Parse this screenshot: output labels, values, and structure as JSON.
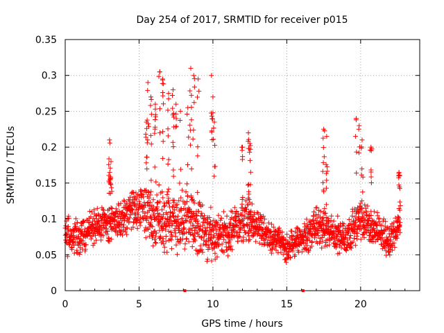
{
  "chart_data": {
    "type": "scatter",
    "title": "Day 254 of 2017, SRMTID for receiver p015",
    "xlabel": "GPS time / hours",
    "ylabel": "SRMTID / TECUs",
    "xlim": [
      0,
      24
    ],
    "ylim": [
      0,
      0.35
    ],
    "x_ticks": [
      0,
      5,
      10,
      15,
      20
    ],
    "x_tick_labels": [
      "0",
      "5",
      "10",
      "15",
      "20"
    ],
    "y_ticks": [
      0,
      0.05,
      0.1,
      0.15,
      0.2,
      0.25,
      0.3,
      0.35
    ],
    "y_tick_labels": [
      "0",
      "0.05",
      "0.1",
      "0.15",
      "0.2",
      "0.25",
      "0.3",
      "0.35"
    ],
    "grid": true,
    "marker": "plus",
    "color": "#ff0000",
    "axis_markers_x": [
      8.1,
      16.1
    ],
    "series": [
      {
        "name": "SRMTID",
        "approx_profile": [
          {
            "t": 0.0,
            "median": 0.075,
            "spread": 0.03
          },
          {
            "t": 1.0,
            "median": 0.075,
            "spread": 0.03
          },
          {
            "t": 2.0,
            "median": 0.09,
            "spread": 0.03
          },
          {
            "t": 3.0,
            "median": 0.095,
            "spread": 0.03
          },
          {
            "t": 4.0,
            "median": 0.1,
            "spread": 0.03
          },
          {
            "t": 5.0,
            "median": 0.12,
            "spread": 0.035
          },
          {
            "t": 6.0,
            "median": 0.1,
            "spread": 0.05
          },
          {
            "t": 7.0,
            "median": 0.1,
            "spread": 0.05
          },
          {
            "t": 8.0,
            "median": 0.095,
            "spread": 0.05
          },
          {
            "t": 9.0,
            "median": 0.09,
            "spread": 0.05
          },
          {
            "t": 10.0,
            "median": 0.07,
            "spread": 0.035
          },
          {
            "t": 11.0,
            "median": 0.08,
            "spread": 0.035
          },
          {
            "t": 12.0,
            "median": 0.1,
            "spread": 0.035
          },
          {
            "t": 13.0,
            "median": 0.09,
            "spread": 0.03
          },
          {
            "t": 14.0,
            "median": 0.075,
            "spread": 0.025
          },
          {
            "t": 15.0,
            "median": 0.06,
            "spread": 0.025
          },
          {
            "t": 16.0,
            "median": 0.07,
            "spread": 0.025
          },
          {
            "t": 17.0,
            "median": 0.09,
            "spread": 0.03
          },
          {
            "t": 18.0,
            "median": 0.08,
            "spread": 0.03
          },
          {
            "t": 19.0,
            "median": 0.075,
            "spread": 0.03
          },
          {
            "t": 20.0,
            "median": 0.1,
            "spread": 0.03
          },
          {
            "t": 21.0,
            "median": 0.085,
            "spread": 0.03
          },
          {
            "t": 22.0,
            "median": 0.07,
            "spread": 0.025
          },
          {
            "t": 22.7,
            "median": 0.1,
            "spread": 0.03
          }
        ],
        "spikes": [
          {
            "t": 3.0,
            "max": 0.21
          },
          {
            "t": 3.1,
            "max": 0.18
          },
          {
            "t": 5.5,
            "max": 0.235
          },
          {
            "t": 5.6,
            "max": 0.29
          },
          {
            "t": 5.8,
            "max": 0.27
          },
          {
            "t": 6.1,
            "max": 0.26
          },
          {
            "t": 6.4,
            "max": 0.305
          },
          {
            "t": 6.6,
            "max": 0.295
          },
          {
            "t": 7.0,
            "max": 0.275
          },
          {
            "t": 7.3,
            "max": 0.28
          },
          {
            "t": 7.5,
            "max": 0.26
          },
          {
            "t": 7.8,
            "max": 0.25
          },
          {
            "t": 8.3,
            "max": 0.255
          },
          {
            "t": 8.5,
            "max": 0.31
          },
          {
            "t": 8.7,
            "max": 0.3
          },
          {
            "t": 9.0,
            "max": 0.295
          },
          {
            "t": 9.9,
            "max": 0.3
          },
          {
            "t": 10.0,
            "max": 0.27
          },
          {
            "t": 10.1,
            "max": 0.235
          },
          {
            "t": 12.0,
            "max": 0.2
          },
          {
            "t": 12.4,
            "max": 0.22
          },
          {
            "t": 12.5,
            "max": 0.205
          },
          {
            "t": 17.5,
            "max": 0.225
          },
          {
            "t": 17.7,
            "max": 0.215
          },
          {
            "t": 19.7,
            "max": 0.24
          },
          {
            "t": 19.9,
            "max": 0.23
          },
          {
            "t": 20.1,
            "max": 0.21
          },
          {
            "t": 20.7,
            "max": 0.2
          },
          {
            "t": 22.6,
            "max": 0.165
          }
        ]
      }
    ]
  }
}
